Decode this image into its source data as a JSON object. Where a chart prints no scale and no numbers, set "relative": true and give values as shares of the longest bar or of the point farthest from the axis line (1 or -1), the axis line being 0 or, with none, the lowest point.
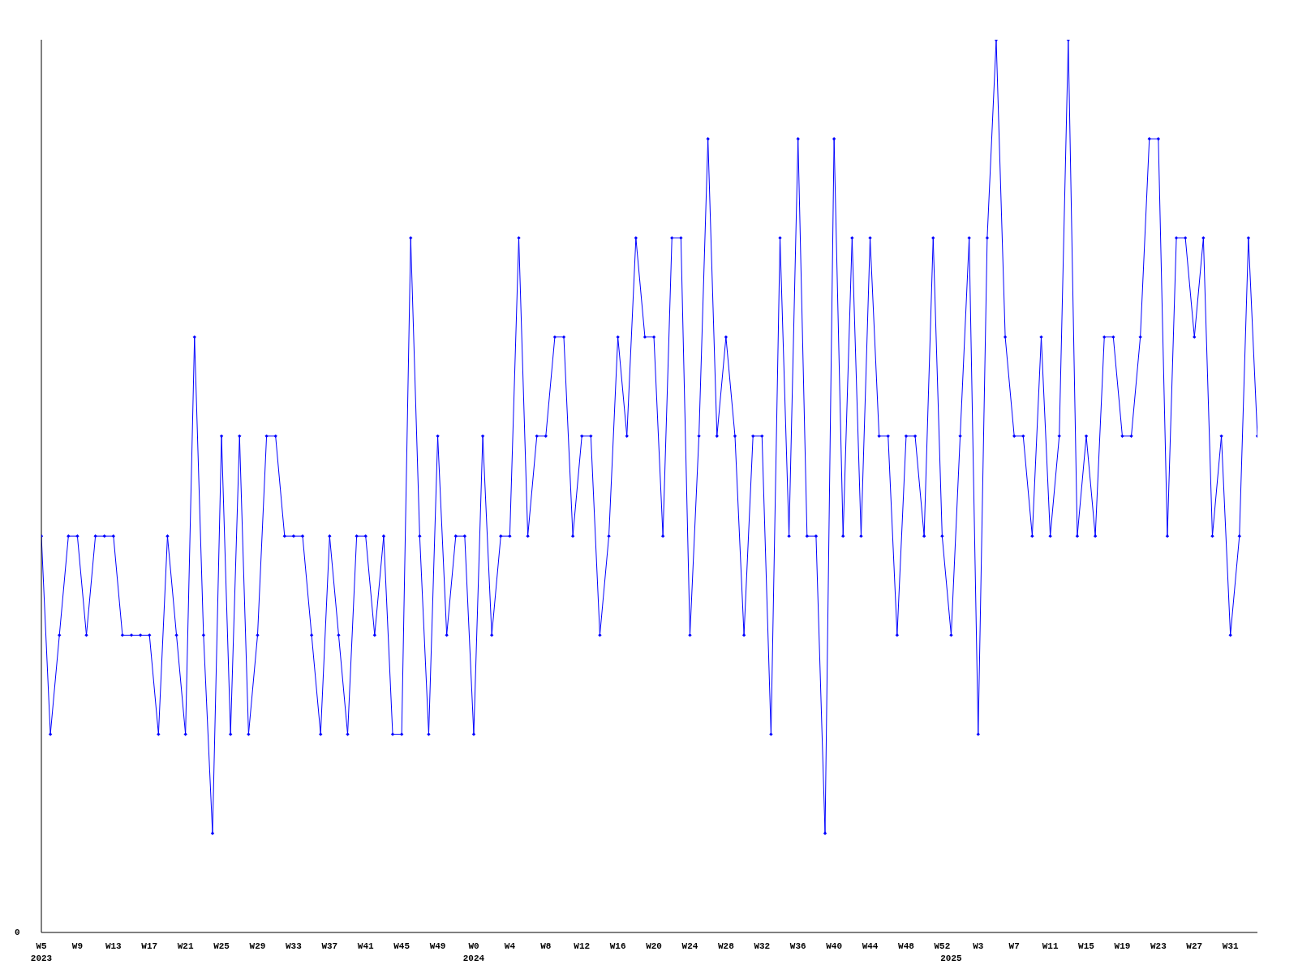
{
  "chart_data": {
    "type": "line",
    "relative": true,
    "color": "#0000ff",
    "marker": "diamond",
    "annotations": [
      "0"
    ],
    "categories": [
      "W5\n2023",
      null,
      null,
      null,
      "W9",
      null,
      null,
      null,
      "W13",
      null,
      null,
      null,
      "W17",
      null,
      null,
      null,
      "W21",
      null,
      null,
      null,
      "W25",
      null,
      null,
      null,
      "W29",
      null,
      null,
      null,
      "W33",
      null,
      null,
      null,
      "W37",
      null,
      null,
      null,
      "W41",
      null,
      null,
      null,
      "W45",
      null,
      null,
      null,
      "W49",
      null,
      null,
      null,
      "W0\n2024",
      null,
      null,
      null,
      "W4",
      null,
      null,
      null,
      "W8",
      null,
      null,
      null,
      "W12",
      null,
      null,
      null,
      "W16",
      null,
      null,
      null,
      "W20",
      null,
      null,
      null,
      "W24",
      null,
      null,
      null,
      "W28",
      null,
      null,
      null,
      "W32",
      null,
      null,
      null,
      "W36",
      null,
      null,
      null,
      "W40",
      null,
      null,
      null,
      "W44",
      null,
      null,
      null,
      "W48",
      null,
      null,
      null,
      "W52",
      "\n2025",
      null,
      null,
      "W3",
      null,
      null,
      null,
      "W7",
      null,
      null,
      null,
      "W11",
      null,
      null,
      null,
      "W15",
      null,
      null,
      null,
      "W19",
      null,
      null,
      null,
      "W23",
      null,
      null,
      null,
      "W27",
      null,
      null,
      null,
      "W31",
      null,
      null,
      null
    ],
    "values": [
      0.444,
      0.222,
      0.333,
      0.444,
      0.444,
      0.333,
      0.444,
      0.444,
      0.444,
      0.333,
      0.333,
      0.333,
      0.333,
      0.222,
      0.444,
      0.333,
      0.222,
      0.667,
      0.333,
      0.111,
      0.556,
      0.222,
      0.556,
      0.222,
      0.333,
      0.556,
      0.556,
      0.444,
      0.444,
      0.444,
      0.333,
      0.222,
      0.444,
      0.333,
      0.222,
      0.444,
      0.444,
      0.333,
      0.444,
      0.222,
      0.222,
      0.778,
      0.444,
      0.222,
      0.556,
      0.333,
      0.444,
      0.444,
      0.222,
      0.556,
      0.333,
      0.444,
      0.444,
      0.778,
      0.444,
      0.556,
      0.556,
      0.667,
      0.667,
      0.444,
      0.556,
      0.556,
      0.333,
      0.444,
      0.667,
      0.556,
      0.778,
      0.667,
      0.667,
      0.444,
      0.778,
      0.778,
      0.333,
      0.556,
      0.889,
      0.556,
      0.667,
      0.556,
      0.333,
      0.556,
      0.556,
      0.222,
      0.778,
      0.444,
      0.889,
      0.444,
      0.444,
      0.111,
      0.889,
      0.444,
      0.778,
      0.444,
      0.778,
      0.556,
      0.556,
      0.333,
      0.556,
      0.556,
      0.444,
      0.778,
      0.444,
      0.333,
      0.556,
      0.778,
      0.222,
      0.778,
      1,
      0.667,
      0.556,
      0.556,
      0.444,
      0.667,
      0.444,
      0.556,
      1,
      0.444,
      0.556,
      0.444,
      0.667,
      0.667,
      0.556,
      0.556,
      0.667,
      0.889,
      0.889,
      0.444,
      0.778,
      0.778,
      0.667,
      0.778,
      0.444,
      0.556,
      0.333,
      0.444,
      0.778,
      0.556
    ]
  }
}
